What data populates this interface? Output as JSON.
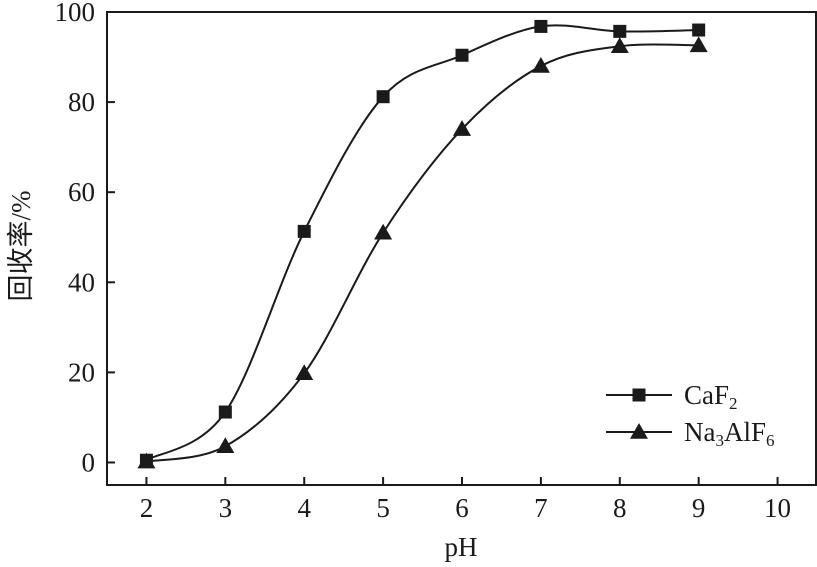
{
  "chart_data": {
    "type": "line",
    "title": "",
    "xlabel": "pH",
    "ylabel": "回收率/%",
    "xlim": [
      1.5,
      10.5
    ],
    "ylim": [
      -5,
      100
    ],
    "x_ticks": [
      2,
      3,
      4,
      5,
      6,
      7,
      8,
      9,
      10
    ],
    "y_ticks": [
      0,
      20,
      40,
      60,
      80,
      100
    ],
    "grid": false,
    "legend_position": "bottom-right",
    "series": [
      {
        "name": "CaF",
        "name_subscript": "2",
        "marker": "square",
        "color": "#1a1a1a",
        "x": [
          2,
          3,
          4,
          5,
          6,
          7,
          8,
          9
        ],
        "y": [
          0.5,
          11.2,
          51.3,
          81.2,
          90.4,
          96.8,
          95.7,
          96.0
        ]
      },
      {
        "name": "Na",
        "name_parts": [
          "Na",
          "3",
          "AlF",
          "6"
        ],
        "marker": "triangle",
        "color": "#1a1a1a",
        "x": [
          2,
          3,
          4,
          5,
          6,
          7,
          8,
          9
        ],
        "y": [
          0.2,
          3.6,
          19.8,
          51.0,
          74.0,
          88.0,
          92.4,
          92.6
        ]
      }
    ]
  }
}
